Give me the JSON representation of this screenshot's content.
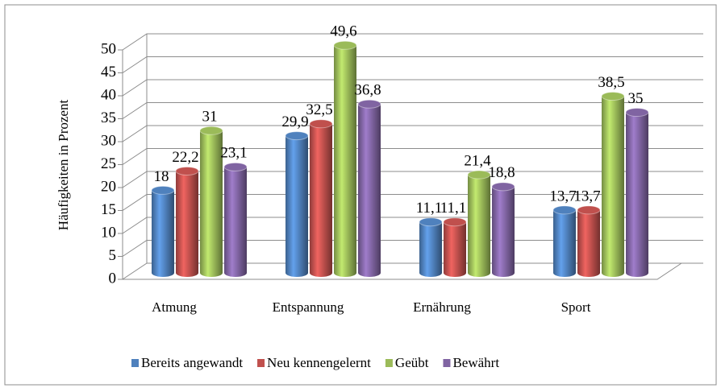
{
  "chart_data": {
    "type": "bar3d",
    "y_label": "Häufigkeiten in Prozent",
    "categories": [
      "Atmung",
      "Entspannung",
      "Ernährung",
      "Sport"
    ],
    "series": [
      {
        "name": "Bereits angewandt",
        "color": "#4f81bd",
        "values": [
          18,
          29.9,
          11.1,
          13.7
        ],
        "value_labels": [
          "18",
          "29,9",
          "11,1",
          "13,7"
        ]
      },
      {
        "name": "Neu kennengelernt",
        "color": "#c0504d",
        "values": [
          22.2,
          32.5,
          11.1,
          13.7
        ],
        "value_labels": [
          "22,2",
          "32,5",
          "11,1",
          "13,7"
        ]
      },
      {
        "name": "Geübt",
        "color": "#9bbb59",
        "values": [
          31,
          49.6,
          21.4,
          38.5
        ],
        "value_labels": [
          "31",
          "49,6",
          "21,4",
          "38,5"
        ]
      },
      {
        "name": "Bewährt",
        "color": "#8064a2",
        "values": [
          23.1,
          36.8,
          18.8,
          35
        ],
        "value_labels": [
          "23,1",
          "36,8",
          "18,8",
          "35"
        ]
      }
    ],
    "ylim": [
      0,
      50
    ],
    "yticks": [
      0,
      5,
      10,
      15,
      20,
      25,
      30,
      35,
      40,
      45,
      50
    ],
    "grid": true,
    "legend": "bottom"
  }
}
